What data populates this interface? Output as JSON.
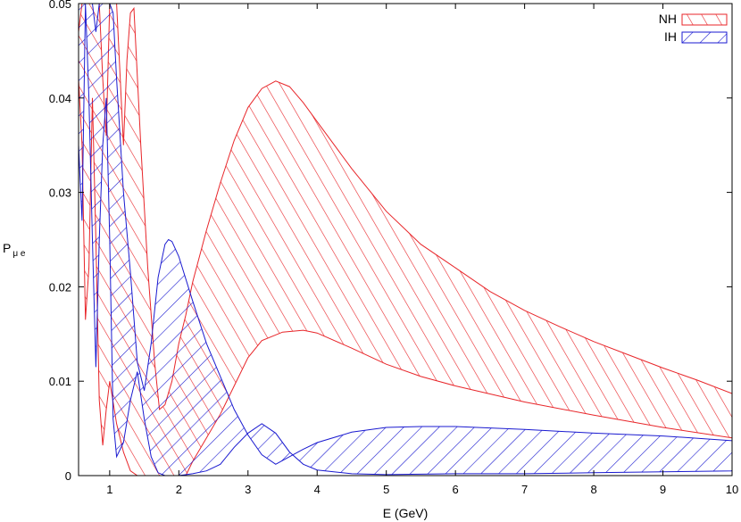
{
  "chart_data": {
    "type": "area",
    "xlabel": "E (GeV)",
    "ylabel_main": "P",
    "ylabel_sub": "μ e",
    "xlim": [
      0.55,
      10
    ],
    "ylim": [
      0,
      0.05
    ],
    "x_ticks": [
      1,
      2,
      3,
      4,
      5,
      6,
      7,
      8,
      9,
      10
    ],
    "x_tick_labels": [
      "1",
      "2",
      "3",
      "4",
      "5",
      "6",
      "7",
      "8",
      "9",
      "10"
    ],
    "y_ticks": [
      0,
      0.01,
      0.02,
      0.03,
      0.04,
      0.05
    ],
    "y_tick_labels": [
      "0",
      "0.01",
      "0.02",
      "0.03",
      "0.04",
      "0.05"
    ],
    "grid": false,
    "legend_position": "top-right",
    "series": [
      {
        "name": "NH",
        "color": "#e8262a",
        "hatch": "dense-diagonal",
        "upper": [
          [
            0.55,
            0.047
          ],
          [
            0.6,
            0.05
          ],
          [
            0.85,
            0.05
          ],
          [
            0.9,
            0.042
          ],
          [
            0.95,
            0.036
          ],
          [
            1.0,
            0.05
          ],
          [
            1.1,
            0.05
          ],
          [
            1.2,
            0.035
          ],
          [
            1.25,
            0.044
          ],
          [
            1.3,
            0.049
          ],
          [
            1.35,
            0.0495
          ],
          [
            1.45,
            0.035
          ],
          [
            1.55,
            0.022
          ],
          [
            1.65,
            0.012
          ],
          [
            1.72,
            0.007
          ],
          [
            1.8,
            0.0075
          ],
          [
            1.9,
            0.01
          ],
          [
            2.0,
            0.014
          ],
          [
            2.1,
            0.017
          ],
          [
            2.2,
            0.0205
          ],
          [
            2.4,
            0.026
          ],
          [
            2.6,
            0.031
          ],
          [
            2.8,
            0.0355
          ],
          [
            3.0,
            0.039
          ],
          [
            3.2,
            0.041
          ],
          [
            3.4,
            0.0418
          ],
          [
            3.6,
            0.0412
          ],
          [
            3.8,
            0.0395
          ],
          [
            4.0,
            0.0375
          ],
          [
            4.5,
            0.0325
          ],
          [
            5.0,
            0.028
          ],
          [
            5.5,
            0.0245
          ],
          [
            6.0,
            0.022
          ],
          [
            6.5,
            0.0195
          ],
          [
            7.0,
            0.0175
          ],
          [
            7.5,
            0.0158
          ],
          [
            8.0,
            0.0142
          ],
          [
            8.5,
            0.0128
          ],
          [
            9.0,
            0.0114
          ],
          [
            9.5,
            0.0101
          ],
          [
            10.0,
            0.0087
          ]
        ],
        "lower": [
          [
            0.55,
            0.042
          ],
          [
            0.6,
            0.035
          ],
          [
            0.65,
            0.0165
          ],
          [
            0.7,
            0.022
          ],
          [
            0.75,
            0.04
          ],
          [
            0.8,
            0.025
          ],
          [
            0.85,
            0.008
          ],
          [
            0.9,
            0.0032
          ],
          [
            0.95,
            0.007
          ],
          [
            1.0,
            0.01
          ],
          [
            1.1,
            0.0055
          ],
          [
            1.2,
            0.0025
          ],
          [
            1.3,
            0.0005
          ],
          [
            1.4,
            0.0
          ],
          [
            1.7,
            0.0
          ],
          [
            1.75,
            0.0
          ],
          [
            1.8,
            0.0
          ],
          [
            1.9,
            0.0
          ],
          [
            2.0,
            0.0
          ],
          [
            2.1,
            0.0
          ],
          [
            2.2,
            0.0015
          ],
          [
            2.4,
            0.004
          ],
          [
            2.6,
            0.0065
          ],
          [
            2.8,
            0.0095
          ],
          [
            3.0,
            0.0125
          ],
          [
            3.2,
            0.0143
          ],
          [
            3.5,
            0.0152
          ],
          [
            3.8,
            0.0154
          ],
          [
            4.0,
            0.0151
          ],
          [
            4.5,
            0.0135
          ],
          [
            5.0,
            0.0118
          ],
          [
            5.5,
            0.0105
          ],
          [
            6.0,
            0.0095
          ],
          [
            7.0,
            0.0078
          ],
          [
            8.0,
            0.0064
          ],
          [
            9.0,
            0.0051
          ],
          [
            10.0,
            0.004
          ]
        ]
      },
      {
        "name": "IH",
        "color": "#1a1ad0",
        "hatch": "diagonal",
        "upper": [
          [
            0.55,
            0.05
          ],
          [
            0.6,
            0.05
          ],
          [
            0.65,
            0.05
          ],
          [
            0.7,
            0.05
          ],
          [
            0.75,
            0.05
          ],
          [
            0.8,
            0.047
          ],
          [
            0.85,
            0.05
          ],
          [
            1.0,
            0.05
          ],
          [
            1.05,
            0.049
          ],
          [
            1.1,
            0.042
          ],
          [
            1.2,
            0.03
          ],
          [
            1.3,
            0.0215
          ],
          [
            1.4,
            0.012
          ],
          [
            1.5,
            0.009
          ],
          [
            1.6,
            0.014
          ],
          [
            1.7,
            0.021
          ],
          [
            1.8,
            0.0245
          ],
          [
            1.85,
            0.025
          ],
          [
            1.9,
            0.0248
          ],
          [
            2.0,
            0.0232
          ],
          [
            2.2,
            0.0185
          ],
          [
            2.4,
            0.014
          ],
          [
            2.6,
            0.0105
          ],
          [
            2.8,
            0.007
          ],
          [
            3.0,
            0.0043
          ],
          [
            3.2,
            0.0022
          ],
          [
            3.4,
            0.0012
          ],
          [
            3.6,
            0.002
          ],
          [
            3.8,
            0.0028
          ],
          [
            4.0,
            0.0035
          ],
          [
            4.5,
            0.0046
          ],
          [
            5.0,
            0.0051
          ],
          [
            5.5,
            0.0052
          ],
          [
            6.0,
            0.0052
          ],
          [
            7.0,
            0.0049
          ],
          [
            8.0,
            0.0045
          ],
          [
            9.0,
            0.0042
          ],
          [
            10.0,
            0.0037
          ]
        ],
        "lower": [
          [
            0.55,
            0.035
          ],
          [
            0.6,
            0.027
          ],
          [
            0.65,
            0.05
          ],
          [
            0.7,
            0.04
          ],
          [
            0.75,
            0.025
          ],
          [
            0.8,
            0.0115
          ],
          [
            0.85,
            0.025
          ],
          [
            0.9,
            0.035
          ],
          [
            0.95,
            0.04
          ],
          [
            1.0,
            0.025
          ],
          [
            1.05,
            0.006
          ],
          [
            1.1,
            0.002
          ],
          [
            1.2,
            0.0035
          ],
          [
            1.3,
            0.008
          ],
          [
            1.4,
            0.011
          ],
          [
            1.5,
            0.006
          ],
          [
            1.6,
            0.002
          ],
          [
            1.7,
            0.0003
          ],
          [
            1.8,
            0.0
          ],
          [
            2.0,
            0.0
          ],
          [
            2.2,
            0.0002
          ],
          [
            2.4,
            0.0005
          ],
          [
            2.6,
            0.0012
          ],
          [
            2.8,
            0.003
          ],
          [
            3.0,
            0.0045
          ],
          [
            3.2,
            0.0055
          ],
          [
            3.4,
            0.0045
          ],
          [
            3.6,
            0.0025
          ],
          [
            3.8,
            0.0012
          ],
          [
            4.0,
            0.0006
          ],
          [
            4.5,
            0.0002
          ],
          [
            5.0,
            0.0001
          ],
          [
            6.0,
            0.0002
          ],
          [
            7.0,
            0.0002
          ],
          [
            8.0,
            0.0003
          ],
          [
            9.0,
            0.0004
          ],
          [
            10.0,
            0.0005
          ]
        ]
      }
    ]
  }
}
